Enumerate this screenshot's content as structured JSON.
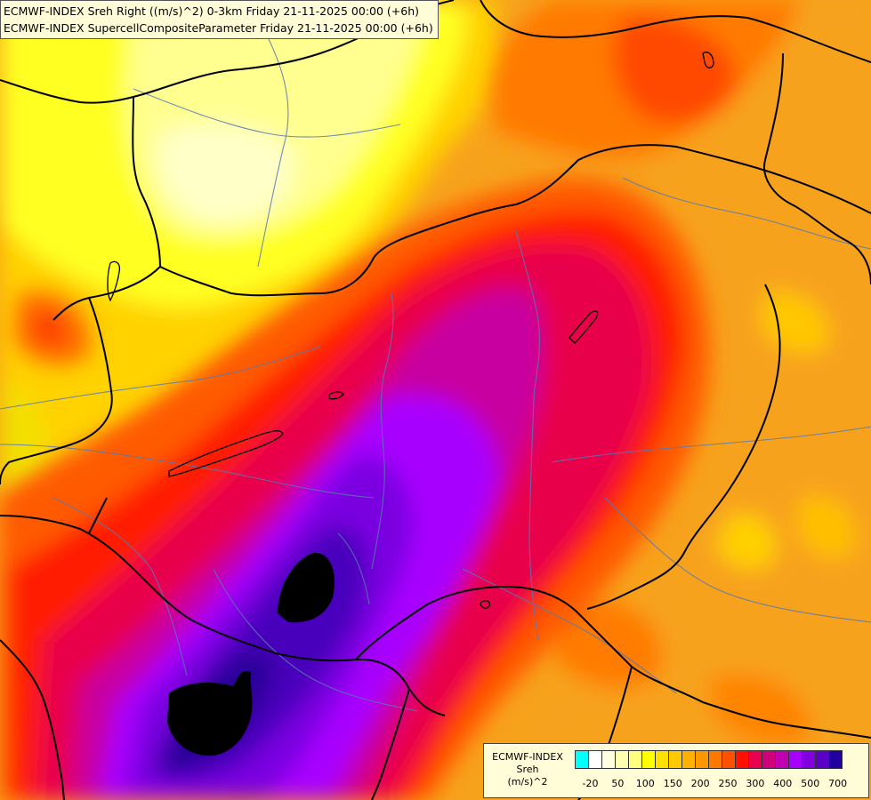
{
  "title": {
    "line1": "ECMWF-INDEX Sreh Right ((m/s)^2) 0-3km Friday 21-11-2025 00:00 (+6h)",
    "line2": "ECMWF-INDEX SupercellCompositeParameter Friday 21-11-2025 00:00 (+6h)"
  },
  "legend": {
    "model": "ECMWF-INDEX",
    "variable": "Sreh",
    "unit": "(m/s)^2",
    "colors": [
      "#00ffff",
      "#ffffff",
      "#ffffe0",
      "#ffffb0",
      "#ffff80",
      "#ffff00",
      "#ffe000",
      "#ffc800",
      "#ffb000",
      "#ff9800",
      "#ff7800",
      "#ff5000",
      "#ff1000",
      "#e8004c",
      "#d0007a",
      "#c000b0",
      "#a800ff",
      "#8000e0",
      "#5a00c8",
      "#2000a0"
    ],
    "tick_labels": [
      "-20",
      "50",
      "100",
      "150",
      "200",
      "250",
      "300",
      "400",
      "500",
      "700"
    ]
  },
  "colors": {
    "border": "#000000",
    "river": "#5878b4"
  }
}
